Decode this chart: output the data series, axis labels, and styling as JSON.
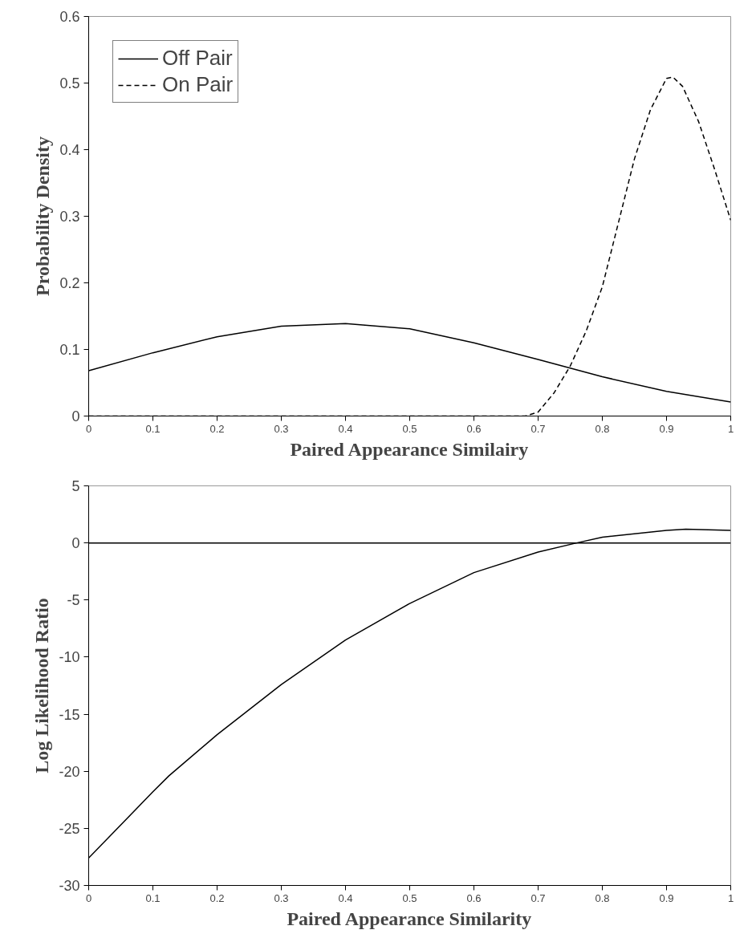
{
  "chart_data": [
    {
      "type": "line",
      "xlabel": "Paired Appearance Similairy",
      "ylabel": "Probability Density",
      "xlim": [
        0,
        1
      ],
      "ylim": [
        0,
        0.6
      ],
      "xticks": [
        0,
        0.1,
        0.2,
        0.3,
        0.4,
        0.5,
        0.6,
        0.7,
        0.8,
        0.9,
        1
      ],
      "yticks": [
        0,
        0.1,
        0.2,
        0.3,
        0.4,
        0.5,
        0.6
      ],
      "legend": "top left",
      "grid": false,
      "series": [
        {
          "name": "Off Pair",
          "color": "#000000",
          "line_style": "solid",
          "x": [
            0,
            0.1,
            0.2,
            0.3,
            0.4,
            0.5,
            0.6,
            0.7,
            0.8,
            0.9,
            1
          ],
          "values": [
            0.068,
            0.095,
            0.119,
            0.135,
            0.139,
            0.131,
            0.11,
            0.085,
            0.059,
            0.037,
            0.021
          ]
        },
        {
          "name": "On Pair",
          "color": "#000000",
          "line_style": "dashed",
          "x": [
            0,
            0.2,
            0.4,
            0.6,
            0.68,
            0.7,
            0.725,
            0.75,
            0.775,
            0.8,
            0.825,
            0.85,
            0.875,
            0.9,
            0.91,
            0.925,
            0.95,
            0.975,
            1
          ],
          "values": [
            0,
            0,
            0,
            0,
            0,
            0.006,
            0.035,
            0.075,
            0.128,
            0.194,
            0.29,
            0.386,
            0.46,
            0.507,
            0.509,
            0.495,
            0.442,
            0.37,
            0.294
          ]
        }
      ]
    },
    {
      "type": "line",
      "xlabel": "Paired Appearance Similarity",
      "ylabel": "Log Likelihood Ratio",
      "xlim": [
        0,
        1
      ],
      "ylim": [
        -30,
        5
      ],
      "xticks": [
        0,
        0.1,
        0.2,
        0.3,
        0.4,
        0.5,
        0.6,
        0.7,
        0.8,
        0.9,
        1
      ],
      "yticks": [
        -30,
        -25,
        -20,
        -15,
        -10,
        -5,
        0,
        5
      ],
      "ref_lines": [
        {
          "axis": "y",
          "value": 0,
          "color": "#000000"
        }
      ],
      "legend": false,
      "grid": false,
      "series": [
        {
          "color": "#000000",
          "line_style": "solid",
          "x": [
            0,
            0.1,
            0.125,
            0.2,
            0.3,
            0.4,
            0.5,
            0.6,
            0.7,
            0.76,
            0.8,
            0.9,
            0.93,
            1
          ],
          "values": [
            -27.6,
            -21.8,
            -20.4,
            -16.8,
            -12.4,
            -8.5,
            -5.3,
            -2.6,
            -0.8,
            0,
            0.5,
            1.1,
            1.2,
            1.1
          ]
        }
      ]
    }
  ]
}
